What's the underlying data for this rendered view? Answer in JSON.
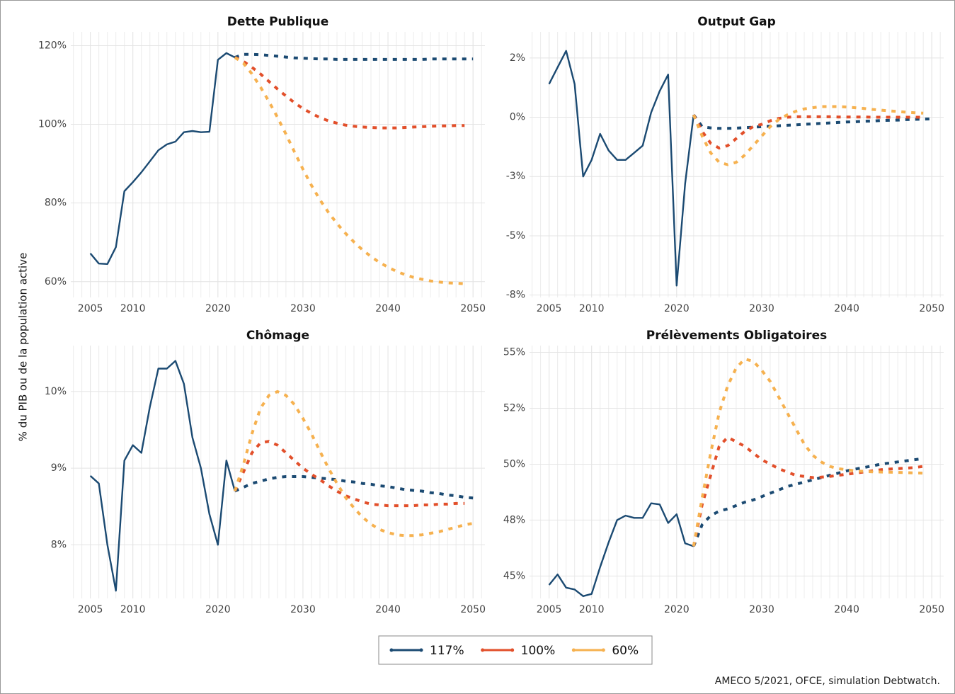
{
  "ylabel": "% du PIB ou de la population active",
  "source": "AMECO 5/2021, OFCE, simulation Debtwatch.",
  "legend": "bottom",
  "chart_data": [
    {
      "type": "line",
      "title": "Dette Publique",
      "projection_start": 2022,
      "grid": true,
      "x": [
        2005,
        2006,
        2007,
        2008,
        2009,
        2010,
        2011,
        2012,
        2013,
        2014,
        2015,
        2016,
        2017,
        2018,
        2019,
        2020,
        2021,
        2022,
        2023,
        2024,
        2025,
        2026,
        2027,
        2028,
        2029,
        2030,
        2031,
        2032,
        2033,
        2034,
        2035,
        2036,
        2037,
        2038,
        2039,
        2040,
        2041,
        2042,
        2043,
        2044,
        2045,
        2046,
        2047,
        2048,
        2049,
        2050
      ],
      "xlim": [
        2002.7,
        2051.4
      ],
      "xticks": [
        2005,
        2010,
        2020,
        2030,
        2040,
        2050
      ],
      "ylim": [
        56,
        123.5
      ],
      "yticks": [
        {
          "value": 60,
          "label": "60%"
        },
        {
          "value": 80,
          "label": "80%"
        },
        {
          "value": 100,
          "label": "100%"
        },
        {
          "value": 120,
          "label": "120%"
        }
      ],
      "series": [
        {
          "name": "117%",
          "color": "#1b4a72",
          "values": [
            67.2,
            64.6,
            64.5,
            68.8,
            83,
            85.3,
            87.8,
            90.6,
            93.4,
            94.9,
            95.6,
            98,
            98.3,
            98,
            98.1,
            116.4,
            118.1,
            117,
            117.8,
            117.8,
            117.7,
            117.5,
            117.3,
            117.1,
            116.9,
            116.8,
            116.7,
            116.6,
            116.6,
            116.5,
            116.5,
            116.5,
            116.5,
            116.5,
            116.5,
            116.5,
            116.5,
            116.5,
            116.5,
            116.5,
            116.6,
            116.6,
            116.6,
            116.6,
            116.6,
            116.6
          ]
        },
        {
          "name": "100%",
          "color": "#e24f2a",
          "values": [
            null,
            null,
            null,
            null,
            null,
            null,
            null,
            null,
            null,
            null,
            null,
            null,
            null,
            null,
            null,
            null,
            null,
            117,
            116,
            114.5,
            112.8,
            110.9,
            109,
            107.2,
            105.5,
            104,
            102.8,
            101.7,
            100.9,
            100.3,
            99.8,
            99.5,
            99.3,
            99.2,
            99.1,
            99.1,
            99.1,
            99.2,
            99.3,
            99.4,
            99.5,
            99.6,
            99.6,
            99.7,
            99.7,
            null
          ]
        },
        {
          "name": "60%",
          "color": "#f6b14f",
          "values": [
            null,
            null,
            null,
            null,
            null,
            null,
            null,
            null,
            null,
            null,
            null,
            null,
            null,
            null,
            null,
            null,
            null,
            117,
            115.5,
            112.8,
            109.5,
            105.8,
            101.8,
            97.5,
            93,
            88.6,
            84.5,
            80.8,
            77.6,
            74.8,
            72.3,
            70.1,
            68.1,
            66.4,
            64.9,
            63.7,
            62.6,
            61.8,
            61.1,
            60.6,
            60.2,
            59.9,
            59.7,
            59.6,
            59.5,
            null
          ]
        }
      ]
    },
    {
      "type": "line",
      "title": "Output Gap",
      "projection_start": 2022,
      "grid": true,
      "x": [
        2005,
        2006,
        2007,
        2008,
        2009,
        2010,
        2011,
        2012,
        2013,
        2014,
        2015,
        2016,
        2017,
        2018,
        2019,
        2020,
        2021,
        2022,
        2023,
        2024,
        2025,
        2026,
        2027,
        2028,
        2029,
        2030,
        2031,
        2032,
        2033,
        2034,
        2035,
        2036,
        2037,
        2038,
        2039,
        2040,
        2041,
        2042,
        2043,
        2044,
        2045,
        2046,
        2047,
        2048,
        2049,
        2050
      ],
      "xlim": [
        2002.7,
        2051.4
      ],
      "xticks": [
        2005,
        2010,
        2020,
        2030,
        2040,
        2050
      ],
      "ylim": [
        -7.6,
        3.6
      ],
      "yticks": [
        {
          "value": -7.5,
          "label": "-8%"
        },
        {
          "value": -5,
          "label": "-5%"
        },
        {
          "value": -2.5,
          "label": "-3%"
        },
        {
          "value": 0,
          "label": "0%"
        },
        {
          "value": 2.5,
          "label": "2%"
        }
      ],
      "series": [
        {
          "name": "117%",
          "color": "#1b4a72",
          "values": [
            1.4,
            2.1,
            2.8,
            1.4,
            -2.5,
            -1.8,
            -0.7,
            -1.4,
            -1.8,
            -1.8,
            -1.5,
            -1.2,
            0.2,
            1.1,
            1.8,
            -7.1,
            -2.8,
            0.1,
            -0.4,
            -0.45,
            -0.47,
            -0.47,
            -0.46,
            -0.44,
            -0.42,
            -0.4,
            -0.38,
            -0.36,
            -0.34,
            -0.32,
            -0.3,
            -0.28,
            -0.26,
            -0.24,
            -0.22,
            -0.2,
            -0.19,
            -0.17,
            -0.16,
            -0.14,
            -0.13,
            -0.12,
            -0.1,
            -0.09,
            -0.08,
            -0.07
          ]
        },
        {
          "name": "100%",
          "color": "#e24f2a",
          "values": [
            null,
            null,
            null,
            null,
            null,
            null,
            null,
            null,
            null,
            null,
            null,
            null,
            null,
            null,
            null,
            null,
            null,
            0.1,
            -0.6,
            -1.1,
            -1.3,
            -1.2,
            -0.9,
            -0.6,
            -0.4,
            -0.3,
            -0.15,
            -0.05,
            0,
            0.02,
            0.02,
            0.02,
            0.02,
            0.02,
            0.01,
            0.01,
            0.01,
            0.01,
            0,
            0,
            0,
            0,
            0,
            0,
            0,
            null
          ]
        },
        {
          "name": "60%",
          "color": "#f6b14f",
          "values": [
            null,
            null,
            null,
            null,
            null,
            null,
            null,
            null,
            null,
            null,
            null,
            null,
            null,
            null,
            null,
            null,
            null,
            0.1,
            -0.8,
            -1.5,
            -1.9,
            -2.0,
            -1.9,
            -1.6,
            -1.2,
            -0.8,
            -0.4,
            -0.1,
            0.1,
            0.25,
            0.35,
            0.4,
            0.45,
            0.45,
            0.45,
            0.43,
            0.4,
            0.37,
            0.33,
            0.3,
            0.27,
            0.24,
            0.21,
            0.19,
            0.17,
            null
          ]
        }
      ]
    },
    {
      "type": "line",
      "title": "Chômage",
      "projection_start": 2022,
      "grid": true,
      "x": [
        2005,
        2006,
        2007,
        2008,
        2009,
        2010,
        2011,
        2012,
        2013,
        2014,
        2015,
        2016,
        2017,
        2018,
        2019,
        2020,
        2021,
        2022,
        2023,
        2024,
        2025,
        2026,
        2027,
        2028,
        2029,
        2030,
        2031,
        2032,
        2033,
        2034,
        2035,
        2036,
        2037,
        2038,
        2039,
        2040,
        2041,
        2042,
        2043,
        2044,
        2045,
        2046,
        2047,
        2048,
        2049,
        2050
      ],
      "xlim": [
        2002.7,
        2051.4
      ],
      "xticks": [
        2005,
        2010,
        2020,
        2030,
        2040,
        2050
      ],
      "ylim": [
        7.3,
        10.6
      ],
      "yticks": [
        {
          "value": 8,
          "label": "8%"
        },
        {
          "value": 9,
          "label": "9%"
        },
        {
          "value": 10,
          "label": "10%"
        }
      ],
      "series": [
        {
          "name": "117%",
          "color": "#1b4a72",
          "values": [
            8.9,
            8.8,
            8.0,
            7.4,
            9.1,
            9.3,
            9.2,
            9.8,
            10.3,
            10.3,
            10.4,
            10.1,
            9.4,
            9.0,
            8.4,
            8.0,
            9.1,
            8.7,
            8.75,
            8.8,
            8.83,
            8.86,
            8.88,
            8.89,
            8.89,
            8.89,
            8.88,
            8.87,
            8.86,
            8.85,
            8.83,
            8.82,
            8.8,
            8.79,
            8.77,
            8.76,
            8.74,
            8.72,
            8.71,
            8.7,
            8.68,
            8.67,
            8.65,
            8.64,
            8.62,
            8.61
          ]
        },
        {
          "name": "100%",
          "color": "#e24f2a",
          "values": [
            null,
            null,
            null,
            null,
            null,
            null,
            null,
            null,
            null,
            null,
            null,
            null,
            null,
            null,
            null,
            null,
            null,
            8.7,
            8.95,
            9.2,
            9.33,
            9.35,
            9.3,
            9.2,
            9.1,
            9.0,
            8.92,
            8.85,
            8.77,
            8.7,
            8.64,
            8.6,
            8.56,
            8.53,
            8.52,
            8.51,
            8.51,
            8.51,
            8.51,
            8.52,
            8.52,
            8.53,
            8.53,
            8.54,
            8.54,
            null
          ]
        },
        {
          "name": "60%",
          "color": "#f6b14f",
          "values": [
            null,
            null,
            null,
            null,
            null,
            null,
            null,
            null,
            null,
            null,
            null,
            null,
            null,
            null,
            null,
            null,
            null,
            8.7,
            9.05,
            9.45,
            9.78,
            9.95,
            10.0,
            9.95,
            9.83,
            9.65,
            9.45,
            9.22,
            9.0,
            8.8,
            8.62,
            8.48,
            8.36,
            8.27,
            8.2,
            8.16,
            8.13,
            8.12,
            8.12,
            8.13,
            8.15,
            8.17,
            8.2,
            8.23,
            8.26,
            8.28
          ]
        }
      ]
    },
    {
      "type": "line",
      "title": "Prélèvements Obligatoires",
      "projection_start": 2022,
      "grid": true,
      "x": [
        2005,
        2006,
        2007,
        2008,
        2009,
        2010,
        2011,
        2012,
        2013,
        2014,
        2015,
        2016,
        2017,
        2018,
        2019,
        2020,
        2021,
        2022,
        2023,
        2024,
        2025,
        2026,
        2027,
        2028,
        2029,
        2030,
        2031,
        2032,
        2033,
        2034,
        2035,
        2036,
        2037,
        2038,
        2039,
        2040,
        2041,
        2042,
        2043,
        2044,
        2045,
        2046,
        2047,
        2048,
        2049,
        2050
      ],
      "xlim": [
        2002.7,
        2051.4
      ],
      "xticks": [
        2005,
        2010,
        2020,
        2030,
        2040,
        2050
      ],
      "ylim": [
        44,
        55.3
      ],
      "yticks": [
        {
          "value": 45,
          "label": "45%"
        },
        {
          "value": 47.5,
          "label": "48%"
        },
        {
          "value": 50,
          "label": "50%"
        },
        {
          "value": 52.5,
          "label": "52%"
        },
        {
          "value": 55,
          "label": "55%"
        }
      ],
      "series": [
        {
          "name": "117%",
          "color": "#1b4a72",
          "values": [
            44.6,
            45.07,
            44.48,
            44.4,
            44.1,
            44.2,
            45.4,
            46.5,
            47.5,
            47.7,
            47.6,
            47.6,
            48.25,
            48.2,
            47.37,
            47.76,
            46.46,
            46.33,
            47.3,
            47.7,
            47.9,
            48.0,
            48.15,
            48.3,
            48.4,
            48.55,
            48.7,
            48.85,
            49.0,
            49.1,
            49.2,
            49.3,
            49.4,
            49.5,
            49.6,
            49.7,
            49.78,
            49.85,
            49.92,
            50.0,
            50.05,
            50.1,
            50.15,
            50.2,
            50.25,
            null
          ]
        },
        {
          "name": "100%",
          "color": "#e24f2a",
          "values": [
            null,
            null,
            null,
            null,
            null,
            null,
            null,
            null,
            null,
            null,
            null,
            null,
            null,
            null,
            null,
            null,
            null,
            46.33,
            48.2,
            49.5,
            50.8,
            51.2,
            51.0,
            50.8,
            50.5,
            50.2,
            50.0,
            49.8,
            49.65,
            49.5,
            49.45,
            49.4,
            49.42,
            49.45,
            49.5,
            49.55,
            49.6,
            49.65,
            49.7,
            49.75,
            49.78,
            49.8,
            49.82,
            49.85,
            49.9,
            null
          ]
        },
        {
          "name": "60%",
          "color": "#f6b14f",
          "values": [
            null,
            null,
            null,
            null,
            null,
            null,
            null,
            null,
            null,
            null,
            null,
            null,
            null,
            null,
            null,
            null,
            null,
            46.33,
            48.5,
            50.5,
            52.3,
            53.5,
            54.3,
            54.7,
            54.6,
            54.2,
            53.7,
            53.0,
            52.3,
            51.6,
            50.9,
            50.4,
            50.1,
            49.9,
            49.8,
            49.75,
            49.7,
            49.68,
            49.66,
            49.65,
            49.64,
            49.63,
            49.62,
            49.61,
            49.6,
            null
          ]
        }
      ]
    }
  ]
}
